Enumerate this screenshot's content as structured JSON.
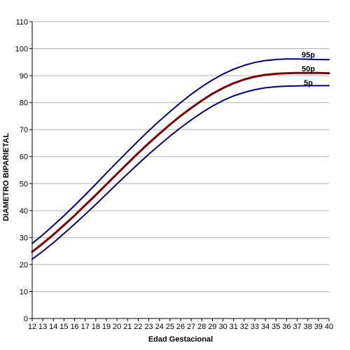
{
  "chart_data": {
    "type": "line",
    "title": "",
    "xlabel": "Edad Gestacional",
    "ylabel": "DIAMETRO BIPARIETAL",
    "xlim": [
      12,
      40
    ],
    "ylim": [
      0,
      110
    ],
    "x_ticks": [
      12,
      13,
      14,
      15,
      16,
      17,
      18,
      19,
      20,
      21,
      22,
      23,
      24,
      25,
      26,
      27,
      28,
      29,
      30,
      31,
      32,
      33,
      34,
      35,
      36,
      37,
      38,
      39,
      40
    ],
    "y_ticks": [
      0,
      10,
      20,
      30,
      40,
      50,
      60,
      70,
      80,
      90,
      100,
      110
    ],
    "grid": true,
    "legend": "none",
    "x": [
      12,
      13,
      14,
      15,
      16,
      17,
      18,
      19,
      20,
      21,
      22,
      23,
      24,
      25,
      26,
      27,
      28,
      29,
      30,
      31,
      32,
      33,
      34,
      35,
      36,
      37,
      38,
      39,
      40
    ],
    "series": [
      {
        "name": "95p",
        "color": "#000080",
        "values": [
          27.8,
          31.0,
          34.5,
          38.1,
          41.9,
          45.8,
          49.8,
          53.9,
          57.9,
          61.9,
          65.8,
          69.6,
          73.2,
          76.7,
          80.0,
          83.1,
          85.9,
          88.4,
          90.6,
          92.4,
          93.8,
          94.9,
          95.6,
          96.0,
          96.2,
          96.2,
          96.1,
          96.0,
          95.9
        ]
      },
      {
        "name": "50p",
        "color": "#800000",
        "values": [
          24.7,
          27.8,
          31.1,
          34.6,
          38.2,
          42.0,
          45.8,
          49.7,
          53.6,
          57.5,
          61.3,
          65.0,
          68.5,
          71.9,
          75.1,
          78.0,
          80.8,
          83.3,
          85.4,
          87.2,
          88.6,
          89.6,
          90.3,
          90.7,
          90.9,
          91.0,
          91.0,
          91.0,
          90.9
        ]
      },
      {
        "name": "5p",
        "color": "#000080",
        "values": [
          22.0,
          24.9,
          28.1,
          31.5,
          35.0,
          38.6,
          42.3,
          46.1,
          49.9,
          53.6,
          57.3,
          60.9,
          64.3,
          67.6,
          70.7,
          73.6,
          76.3,
          78.7,
          80.8,
          82.5,
          83.8,
          84.8,
          85.5,
          85.9,
          86.1,
          86.2,
          86.3,
          86.3,
          86.3
        ]
      }
    ]
  }
}
